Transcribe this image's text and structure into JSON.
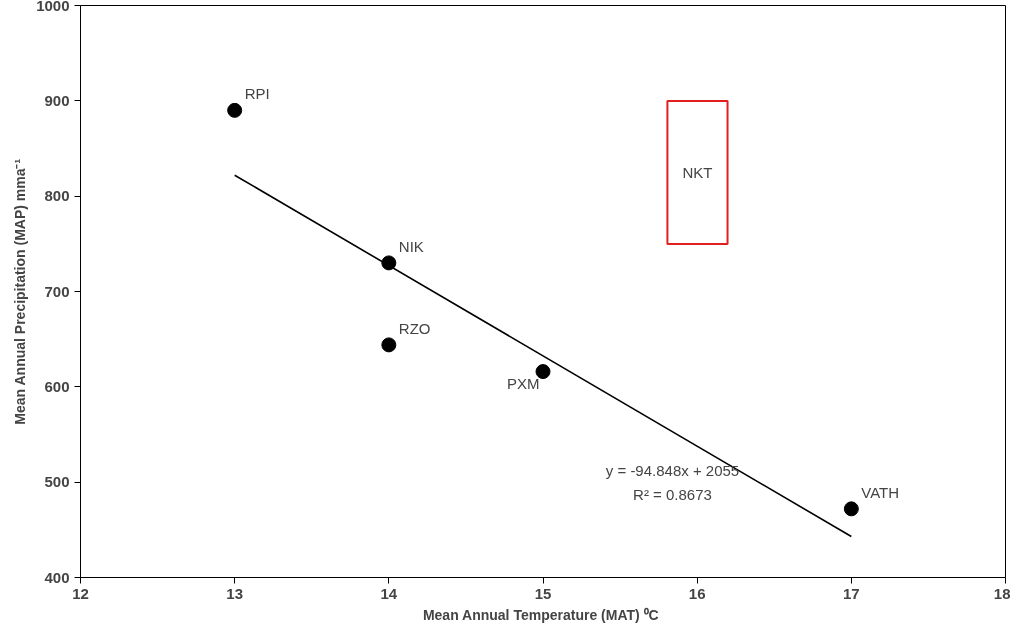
{
  "chart_data": {
    "type": "scatter",
    "xlabel": "Mean Annual Temperature (MAT)  ⁰C",
    "ylabel": "Mean Annual Precipitation (MAP) mma⁻¹",
    "x": [
      13,
      14,
      14,
      15,
      17
    ],
    "series": [
      {
        "color": "#000000",
        "marker": "circle",
        "values": [
          890,
          730,
          644,
          616,
          472
        ]
      },
      {
        "type": "line",
        "color": "#000000",
        "x": [
          13,
          17
        ],
        "values": [
          822,
          443
        ],
        "line_style": "solid",
        "marker": "none"
      }
    ],
    "xlim": [
      12,
      18
    ],
    "xticks": [
      12,
      13,
      14,
      15,
      16,
      17,
      18
    ],
    "ylim": [
      400,
      1000
    ],
    "yticks": [
      400,
      500,
      600,
      700,
      800,
      900,
      1000
    ],
    "grid": false,
    "annotations": [
      {
        "text": "RPI",
        "x": 13,
        "y": 890
      },
      {
        "text": "NIK",
        "x": 14,
        "y": 730
      },
      {
        "text": "RZO",
        "x": 14,
        "y": 644
      },
      {
        "text": "PXM",
        "x": 15,
        "y": 616
      },
      {
        "text": "VATH",
        "x": 17,
        "y": 472
      },
      "NKT",
      "y = -94.848x + 2055",
      "R² = 0.8673"
    ]
  }
}
